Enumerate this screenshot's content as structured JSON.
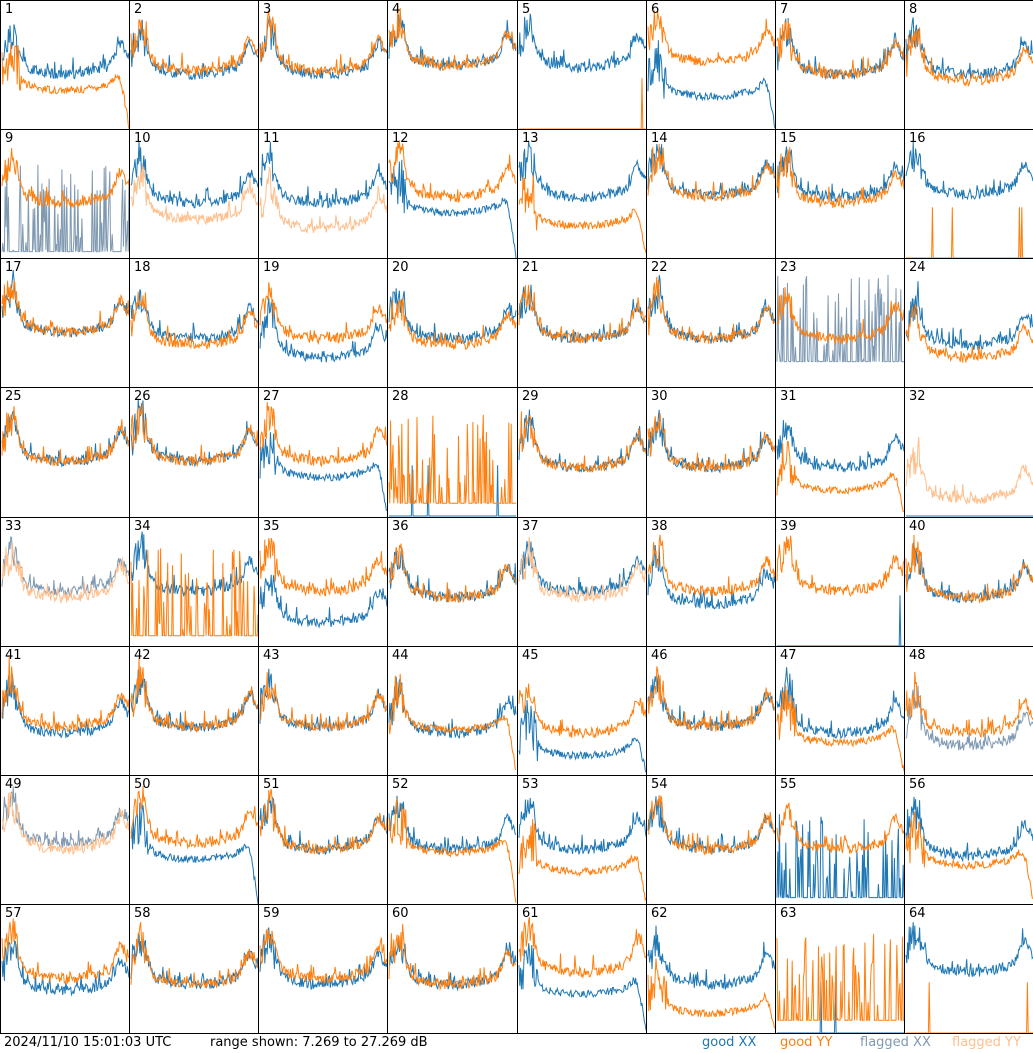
{
  "chart_data": {
    "type": "line",
    "grid": {
      "rows": 8,
      "cols": 8
    },
    "footer": {
      "timestamp": "2024/11/10 15:01:03 UTC",
      "range": "range shown: 7.269 to 27.269 dB"
    },
    "legend": [
      {
        "id": "goodxx",
        "label": "good XX",
        "color": "#1f77b4"
      },
      {
        "id": "goodyy",
        "label": "good YY",
        "color": "#ff7f0e"
      },
      {
        "id": "flagxx",
        "label": "flagged XX",
        "color": "#7f99b2"
      },
      {
        "id": "flagyy",
        "label": "flagged YY",
        "color": "#ffbf8c"
      }
    ],
    "colors": {
      "goodxx": "#1f77b4",
      "goodyy": "#ff7f0e",
      "flagxx": "#7f99b2",
      "flagyy": "#ffbf8c"
    },
    "ylim_db": [
      7.269,
      27.269
    ],
    "panels": [
      {
        "label": "1",
        "xx": "good",
        "yy": "good",
        "xxLevel": 0.55,
        "yyLevel": 0.4,
        "yyShape": "rolloff"
      },
      {
        "label": "2",
        "xx": "good",
        "yy": "good",
        "xxLevel": 0.55,
        "yyLevel": 0.58
      },
      {
        "label": "3",
        "xx": "good",
        "yy": "good",
        "xxLevel": 0.55,
        "yyLevel": 0.58
      },
      {
        "label": "4",
        "xx": "good",
        "yy": "good",
        "xxLevel": 0.62,
        "yyLevel": 0.62
      },
      {
        "label": "5",
        "xx": "good",
        "yy": "good",
        "xxLevel": 0.6,
        "yyLevel": 0.0,
        "yyShape": "dead"
      },
      {
        "label": "6",
        "xx": "good",
        "yy": "good",
        "xxLevel": 0.35,
        "yyLevel": 0.65,
        "xxShape": "rolloff"
      },
      {
        "label": "7",
        "xx": "good",
        "yy": "good",
        "xxLevel": 0.55,
        "yyLevel": 0.55
      },
      {
        "label": "8",
        "xx": "good",
        "yy": "good",
        "xxLevel": 0.55,
        "yyLevel": 0.5
      },
      {
        "label": "9",
        "xx": "flagged",
        "yy": "good",
        "xxLevel": 0.05,
        "yyLevel": 0.55,
        "xxShape": "spiky"
      },
      {
        "label": "10",
        "xx": "good",
        "yy": "flagged",
        "xxLevel": 0.55,
        "yyLevel": 0.42
      },
      {
        "label": "11",
        "xx": "good",
        "yy": "flagged",
        "xxLevel": 0.55,
        "yyLevel": 0.35
      },
      {
        "label": "12",
        "xx": "good",
        "yy": "good",
        "xxLevel": 0.45,
        "yyLevel": 0.6,
        "xxShape": "rolloff"
      },
      {
        "label": "13",
        "xx": "good",
        "yy": "good",
        "xxLevel": 0.6,
        "yyLevel": 0.35,
        "yyShape": "rolloff"
      },
      {
        "label": "14",
        "xx": "good",
        "yy": "good",
        "xxLevel": 0.62,
        "yyLevel": 0.6
      },
      {
        "label": "15",
        "xx": "good",
        "yy": "good",
        "xxLevel": 0.6,
        "yyLevel": 0.55
      },
      {
        "label": "16",
        "xx": "good",
        "yy": "good",
        "xxLevel": 0.62,
        "yyLevel": 0.0,
        "yyShape": "dead"
      },
      {
        "label": "17",
        "xx": "good",
        "yy": "good",
        "xxLevel": 0.55,
        "yyLevel": 0.55
      },
      {
        "label": "18",
        "xx": "good",
        "yy": "good",
        "xxLevel": 0.5,
        "yyLevel": 0.45
      },
      {
        "label": "19",
        "xx": "good",
        "yy": "good",
        "xxLevel": 0.35,
        "yyLevel": 0.5
      },
      {
        "label": "20",
        "xx": "good",
        "yy": "good",
        "xxLevel": 0.5,
        "yyLevel": 0.45
      },
      {
        "label": "21",
        "xx": "good",
        "yy": "good",
        "xxLevel": 0.5,
        "yyLevel": 0.5
      },
      {
        "label": "22",
        "xx": "good",
        "yy": "good",
        "xxLevel": 0.5,
        "yyLevel": 0.5
      },
      {
        "label": "23",
        "xx": "flagged",
        "yy": "good",
        "xxLevel": 0.2,
        "yyLevel": 0.5,
        "xxShape": "spiky"
      },
      {
        "label": "24",
        "xx": "good",
        "yy": "good",
        "xxLevel": 0.45,
        "yyLevel": 0.35
      },
      {
        "label": "25",
        "xx": "good",
        "yy": "good",
        "xxLevel": 0.55,
        "yyLevel": 0.55
      },
      {
        "label": "26",
        "xx": "good",
        "yy": "good",
        "xxLevel": 0.55,
        "yyLevel": 0.55
      },
      {
        "label": "27",
        "xx": "good",
        "yy": "good",
        "xxLevel": 0.4,
        "yyLevel": 0.55,
        "xxShape": "rolloff"
      },
      {
        "label": "28",
        "xx": "good",
        "yy": "good",
        "xxLevel": 0.0,
        "yyLevel": 0.1,
        "xxShape": "dead",
        "yyShape": "spiky"
      },
      {
        "label": "29",
        "xx": "good",
        "yy": "good",
        "xxLevel": 0.5,
        "yyLevel": 0.5
      },
      {
        "label": "30",
        "xx": "good",
        "yy": "good",
        "xxLevel": 0.5,
        "yyLevel": 0.5
      },
      {
        "label": "31",
        "xx": "good",
        "yy": "good",
        "xxLevel": 0.5,
        "yyLevel": 0.3,
        "yyShape": "rolloff"
      },
      {
        "label": "32",
        "xx": "good",
        "yy": "flagged",
        "xxLevel": 0.0,
        "yyLevel": 0.25,
        "xxShape": "dead"
      },
      {
        "label": "33",
        "xx": "flagged",
        "yy": "flagged",
        "xxLevel": 0.55,
        "yyLevel": 0.5
      },
      {
        "label": "34",
        "xx": "good",
        "yy": "good",
        "xxLevel": 0.55,
        "yyLevel": 0.08,
        "yyShape": "spiky"
      },
      {
        "label": "35",
        "xx": "good",
        "yy": "good",
        "xxLevel": 0.3,
        "yyLevel": 0.55
      },
      {
        "label": "36",
        "xx": "good",
        "yy": "good",
        "xxLevel": 0.5,
        "yyLevel": 0.5
      },
      {
        "label": "37",
        "xx": "good",
        "yy": "flagged",
        "xxLevel": 0.55,
        "yyLevel": 0.5
      },
      {
        "label": "38",
        "xx": "good",
        "yy": "good",
        "xxLevel": 0.45,
        "yyLevel": 0.55
      },
      {
        "label": "39",
        "xx": "good",
        "yy": "good",
        "xxLevel": 0.0,
        "yyLevel": 0.55,
        "xxShape": "dead"
      },
      {
        "label": "40",
        "xx": "good",
        "yy": "good",
        "xxLevel": 0.5,
        "yyLevel": 0.5
      },
      {
        "label": "41",
        "xx": "good",
        "yy": "good",
        "xxLevel": 0.45,
        "yyLevel": 0.5
      },
      {
        "label": "42",
        "xx": "good",
        "yy": "good",
        "xxLevel": 0.5,
        "yyLevel": 0.5
      },
      {
        "label": "43",
        "xx": "good",
        "yy": "good",
        "xxLevel": 0.5,
        "yyLevel": 0.5
      },
      {
        "label": "44",
        "xx": "good",
        "yy": "good",
        "xxLevel": 0.45,
        "yyLevel": 0.45,
        "yyShape": "rolloff"
      },
      {
        "label": "45",
        "xx": "good",
        "yy": "good",
        "xxLevel": 0.25,
        "yyLevel": 0.45,
        "xxShape": "rolloff"
      },
      {
        "label": "46",
        "xx": "good",
        "yy": "good",
        "xxLevel": 0.5,
        "yyLevel": 0.5
      },
      {
        "label": "47",
        "xx": "good",
        "yy": "good",
        "xxLevel": 0.45,
        "yyLevel": 0.35,
        "yyShape": "rolloff"
      },
      {
        "label": "48",
        "xx": "flagged",
        "yy": "good",
        "xxLevel": 0.35,
        "yyLevel": 0.45
      },
      {
        "label": "49",
        "xx": "flagged",
        "yy": "flagged",
        "xxLevel": 0.6,
        "yyLevel": 0.55
      },
      {
        "label": "50",
        "xx": "good",
        "yy": "good",
        "xxLevel": 0.45,
        "yyLevel": 0.6,
        "xxShape": "rolloff"
      },
      {
        "label": "51",
        "xx": "good",
        "yy": "good",
        "xxLevel": 0.55,
        "yyLevel": 0.55
      },
      {
        "label": "52",
        "xx": "good",
        "yy": "good",
        "xxLevel": 0.55,
        "yyLevel": 0.5,
        "yyShape": "rolloff"
      },
      {
        "label": "53",
        "xx": "good",
        "yy": "good",
        "xxLevel": 0.55,
        "yyLevel": 0.35,
        "yyShape": "rolloff"
      },
      {
        "label": "54",
        "xx": "good",
        "yy": "good",
        "xxLevel": 0.55,
        "yyLevel": 0.55
      },
      {
        "label": "55",
        "xx": "good",
        "yy": "good",
        "xxLevel": 0.05,
        "yyLevel": 0.55,
        "xxShape": "spiky"
      },
      {
        "label": "56",
        "xx": "good",
        "yy": "good",
        "xxLevel": 0.5,
        "yyLevel": 0.4,
        "yyShape": "rolloff"
      },
      {
        "label": "57",
        "xx": "good",
        "yy": "good",
        "xxLevel": 0.45,
        "yyLevel": 0.55
      },
      {
        "label": "58",
        "xx": "good",
        "yy": "good",
        "xxLevel": 0.5,
        "yyLevel": 0.5
      },
      {
        "label": "59",
        "xx": "good",
        "yy": "good",
        "xxLevel": 0.5,
        "yyLevel": 0.55
      },
      {
        "label": "60",
        "xx": "good",
        "yy": "good",
        "xxLevel": 0.5,
        "yyLevel": 0.5
      },
      {
        "label": "61",
        "xx": "good",
        "yy": "good",
        "xxLevel": 0.4,
        "yyLevel": 0.6,
        "xxShape": "rolloff"
      },
      {
        "label": "62",
        "xx": "good",
        "yy": "good",
        "xxLevel": 0.5,
        "yyLevel": 0.25,
        "yyShape": "rolloff"
      },
      {
        "label": "63",
        "xx": "good",
        "yy": "good",
        "xxLevel": 0.0,
        "yyLevel": 0.1,
        "xxShape": "dead",
        "yyShape": "spiky"
      },
      {
        "label": "64",
        "xx": "good",
        "yy": "good",
        "xxLevel": 0.6,
        "yyLevel": 0.0,
        "yyShape": "dead"
      }
    ]
  }
}
